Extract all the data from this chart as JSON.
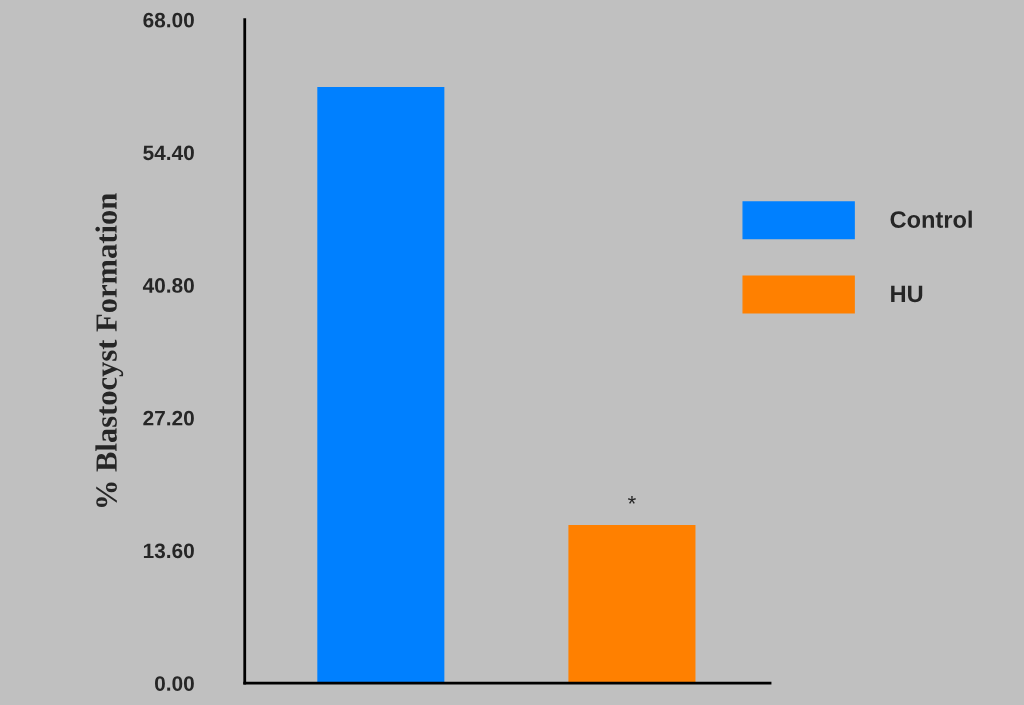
{
  "chart_data": {
    "type": "bar",
    "ylabel": "% Blastocyst Formation",
    "categories": [
      null,
      null
    ],
    "series": [
      {
        "name": "Control",
        "color": "#0080ff",
        "values": [
          61.1,
          null
        ]
      },
      {
        "name": "HU",
        "color": "#ff8000",
        "values": [
          null,
          16.2
        ]
      }
    ],
    "ylim": [
      0,
      68
    ],
    "yticks": [
      {
        "value": 0,
        "label": "0.00"
      },
      {
        "value": 13.6,
        "label": "13.60"
      },
      {
        "value": 27.2,
        "label": "27.20"
      },
      {
        "value": 40.8,
        "label": "40.80"
      },
      {
        "value": 54.4,
        "label": "54.40"
      },
      {
        "value": 68,
        "label": "68.00"
      }
    ],
    "annotations": [
      {
        "text": "*",
        "y": 16.2
      }
    ],
    "legend": "right",
    "grid": false
  }
}
